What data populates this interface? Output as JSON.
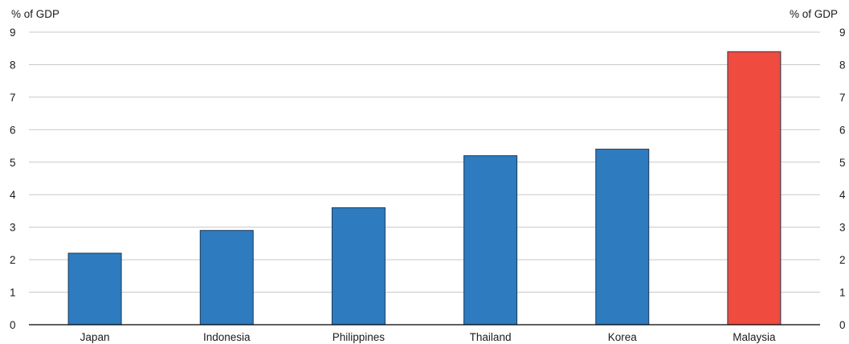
{
  "chart_data": {
    "type": "bar",
    "y_unit_left": "% of GDP",
    "y_unit_right": "% of GDP",
    "categories": [
      "Japan",
      "Indonesia",
      "Philippines",
      "Thailand",
      "Korea",
      "Malaysia"
    ],
    "values": [
      2.2,
      2.9,
      3.6,
      5.2,
      5.4,
      8.4
    ],
    "highlight_category": "Malaysia",
    "colors": {
      "default": "#2e7bbf",
      "highlight": "#ef4b3f",
      "bar_outline": "#1f3a55",
      "grid": "#c8c8c8",
      "axis": "#000000"
    },
    "ylim": [
      0,
      9
    ],
    "yticks": [
      "0",
      "1",
      "2",
      "3",
      "4",
      "5",
      "6",
      "7",
      "8",
      "9"
    ],
    "grid": true,
    "legend": "none"
  }
}
